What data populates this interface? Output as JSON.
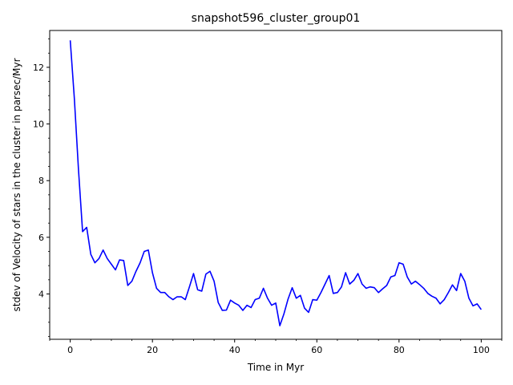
{
  "chart_data": {
    "type": "line",
    "title": "snapshot596_cluster_group01",
    "xlabel": "Time in Myr",
    "ylabel": "stdev of Velocity of stars in the cluster in parsec/Myr",
    "xlim": [
      -5,
      105
    ],
    "ylim": [
      2.4,
      13.3
    ],
    "xticks": [
      0,
      20,
      40,
      60,
      80,
      100
    ],
    "yticks": [
      4,
      6,
      8,
      10,
      12
    ],
    "grid": false,
    "series": [
      {
        "color": "#0000ff",
        "x": [
          0,
          1,
          2,
          3,
          4,
          5,
          6,
          7,
          8,
          9,
          10,
          11,
          12,
          13,
          14,
          15,
          16,
          17,
          18,
          19,
          20,
          21,
          22,
          23,
          24,
          25,
          26,
          27,
          28,
          29,
          30,
          31,
          32,
          33,
          34,
          35,
          36,
          37,
          38,
          39,
          40,
          41,
          42,
          43,
          44,
          45,
          46,
          47,
          48,
          49,
          50,
          51,
          52,
          53,
          54,
          55,
          56,
          57,
          58,
          59,
          60,
          61,
          62,
          63,
          64,
          65,
          66,
          67,
          68,
          69,
          70,
          71,
          72,
          73,
          74,
          75,
          76,
          77,
          78,
          79,
          80,
          81,
          82,
          83,
          84,
          85,
          86,
          87,
          88,
          89,
          90,
          91,
          92,
          93,
          94,
          95,
          96,
          97,
          98,
          99,
          100
        ],
        "y": [
          12.95,
          10.9,
          8.4,
          6.2,
          6.35,
          5.4,
          5.1,
          5.25,
          5.55,
          5.25,
          5.05,
          4.85,
          5.2,
          5.18,
          4.3,
          4.45,
          4.8,
          5.1,
          5.5,
          5.55,
          4.75,
          4.2,
          4.05,
          4.05,
          3.9,
          3.8,
          3.9,
          3.9,
          3.8,
          4.25,
          4.72,
          4.15,
          4.1,
          4.7,
          4.8,
          4.45,
          3.7,
          3.42,
          3.43,
          3.78,
          3.68,
          3.6,
          3.42,
          3.6,
          3.52,
          3.8,
          3.85,
          4.2,
          3.85,
          3.6,
          3.68,
          2.88,
          3.3,
          3.82,
          4.22,
          3.85,
          3.95,
          3.5,
          3.35,
          3.8,
          3.78,
          4.05,
          4.35,
          4.65,
          4.02,
          4.05,
          4.25,
          4.75,
          4.35,
          4.48,
          4.72,
          4.35,
          4.2,
          4.25,
          4.22,
          4.05,
          4.18,
          4.3,
          4.6,
          4.65,
          5.1,
          5.05,
          4.6,
          4.35,
          4.45,
          4.33,
          4.2,
          4.02,
          3.92,
          3.85,
          3.65,
          3.8,
          4.05,
          4.32,
          4.12,
          4.72,
          4.45,
          3.85,
          3.58,
          3.65,
          3.45
        ]
      }
    ]
  }
}
